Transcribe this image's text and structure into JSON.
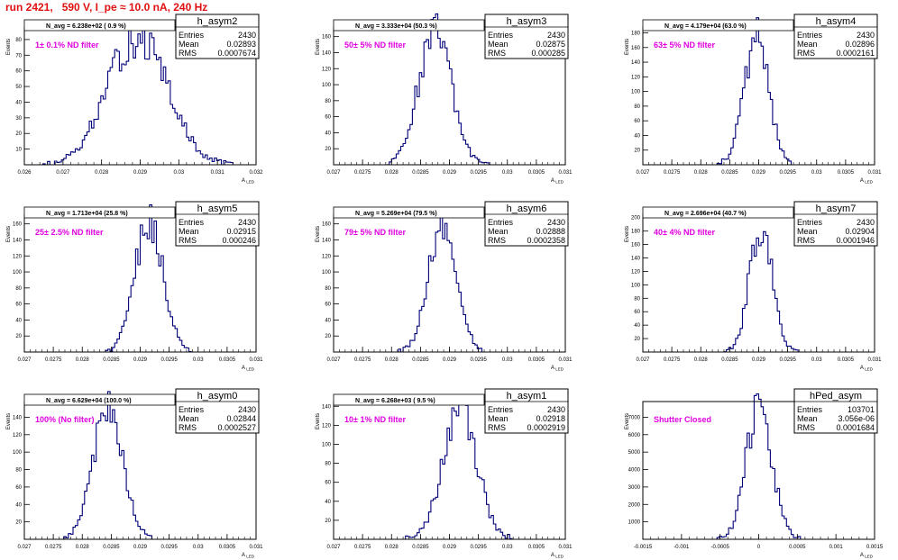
{
  "page": {
    "title": "run 2421,   590 V, I_pe ≈ 10.0 nA, 240 Hz"
  },
  "colors": {
    "histogram": "#00007a",
    "filter_label": "#e000e0",
    "title": "#e01010",
    "frame": "#000000"
  },
  "chart_data": [
    {
      "type": "histogram",
      "name": "h_asym2",
      "ylabel": "Events",
      "xlabel": "A_LED",
      "xlim": [
        0.026,
        0.032
      ],
      "ylim": [
        0,
        88
      ],
      "x_ticks": [
        "0.026",
        "0.027",
        "0.028",
        "0.029",
        "0.03",
        "0.031",
        "0.032"
      ],
      "y_ticks": [
        "10",
        "20",
        "30",
        "40",
        "50",
        "60",
        "70",
        "80"
      ],
      "stats": {
        "entries_label": "Entries",
        "entries": "2430",
        "mean_label": "Mean",
        "mean": "0.02893",
        "rms_label": "RMS",
        "rms": "0.0007674"
      },
      "annotation": "N_avg = 6.238e+02 ( 0.9 %)",
      "filter": "1± 0.1% ND filter",
      "mean": 0.02893,
      "sigma": 0.00077,
      "peak": 82
    },
    {
      "type": "histogram",
      "name": "h_asym3",
      "ylabel": "Events",
      "xlabel": "A_LED",
      "xlim": [
        0.027,
        0.031
      ],
      "ylim": [
        0,
        172
      ],
      "x_ticks": [
        "0.027",
        "0.0275",
        "0.028",
        "0.0285",
        "0.029",
        "0.0295",
        "0.03",
        "0.0305",
        "0.031"
      ],
      "y_ticks": [
        "20",
        "40",
        "60",
        "80",
        "100",
        "120",
        "140",
        "160"
      ],
      "stats": {
        "entries_label": "Entries",
        "entries": "2430",
        "mean_label": "Mean",
        "mean": "0.02875",
        "rms_label": "RMS",
        "rms": "0.000285"
      },
      "annotation": "N_avg = 3.333e+04 (50.3 %)",
      "filter": "50± 5% ND filter",
      "mean": 0.02875,
      "sigma": 0.000285,
      "peak": 165
    },
    {
      "type": "histogram",
      "name": "h_asym4",
      "ylabel": "Events",
      "xlabel": "A_LED",
      "xlim": [
        0.027,
        0.031
      ],
      "ylim": [
        0,
        188
      ],
      "x_ticks": [
        "0.027",
        "0.0275",
        "0.028",
        "0.0285",
        "0.029",
        "0.0295",
        "0.03",
        "0.0305",
        "0.031"
      ],
      "y_ticks": [
        "20",
        "40",
        "60",
        "80",
        "100",
        "120",
        "140",
        "160",
        "180"
      ],
      "stats": {
        "entries_label": "Entries",
        "entries": "2430",
        "mean_label": "Mean",
        "mean": "0.02896",
        "rms_label": "RMS",
        "rms": "0.0002161"
      },
      "annotation": "N_avg = 4.179e+04 (63.0 %)",
      "filter": "63± 5% ND filter",
      "mean": 0.02896,
      "sigma": 0.000216,
      "peak": 175
    },
    {
      "type": "histogram",
      "name": "h_asym5",
      "ylabel": "Events",
      "xlabel": "A_LED",
      "xlim": [
        0.027,
        0.031
      ],
      "ylim": [
        0,
        172
      ],
      "x_ticks": [
        "0.027",
        "0.0275",
        "0.028",
        "0.0285",
        "0.029",
        "0.0295",
        "0.03",
        "0.0305",
        "0.031"
      ],
      "y_ticks": [
        "20",
        "40",
        "60",
        "80",
        "100",
        "120",
        "140",
        "160"
      ],
      "stats": {
        "entries_label": "Entries",
        "entries": "2430",
        "mean_label": "Mean",
        "mean": "0.02915",
        "rms_label": "RMS",
        "rms": "0.000246"
      },
      "annotation": "N_avg = 1.713e+04 (25.8 %)",
      "filter": "25± 2.5% ND filter",
      "mean": 0.02915,
      "sigma": 0.000246,
      "peak": 162
    },
    {
      "type": "histogram",
      "name": "h_asym6",
      "ylabel": "Events",
      "xlabel": "A_LED",
      "xlim": [
        0.027,
        0.031
      ],
      "ylim": [
        0,
        172
      ],
      "x_ticks": [
        "0.027",
        "0.0275",
        "0.028",
        "0.0285",
        "0.029",
        "0.0295",
        "0.03",
        "0.0305",
        "0.031"
      ],
      "y_ticks": [
        "20",
        "40",
        "60",
        "80",
        "100",
        "120",
        "140",
        "160"
      ],
      "stats": {
        "entries_label": "Entries",
        "entries": "2430",
        "mean_label": "Mean",
        "mean": "0.02888",
        "rms_label": "RMS",
        "rms": "0.0002358"
      },
      "annotation": "N_avg = 5.269e+04 (79.5 %)",
      "filter": "79± 5% ND filter",
      "mean": 0.02888,
      "sigma": 0.000236,
      "peak": 165
    },
    {
      "type": "histogram",
      "name": "h_asym7",
      "ylabel": "Events",
      "xlabel": "A_LED",
      "xlim": [
        0.027,
        0.031
      ],
      "ylim": [
        0,
        205
      ],
      "x_ticks": [
        "0.027",
        "0.0275",
        "0.028",
        "0.0285",
        "0.029",
        "0.0295",
        "0.03",
        "0.0305",
        "0.031"
      ],
      "y_ticks": [
        "20",
        "40",
        "60",
        "80",
        "100",
        "120",
        "140",
        "160",
        "180",
        "200"
      ],
      "stats": {
        "entries_label": "Entries",
        "entries": "2430",
        "mean_label": "Mean",
        "mean": "0.02904",
        "rms_label": "RMS",
        "rms": "0.0001946"
      },
      "annotation": "N_avg = 2.696e+04 (40.7 %)",
      "filter": "40± 4% ND filter",
      "mean": 0.02904,
      "sigma": 0.000195,
      "peak": 188
    },
    {
      "type": "histogram",
      "name": "h_asym0",
      "ylabel": "Events",
      "xlabel": "A_LED",
      "xlim": [
        0.027,
        0.031
      ],
      "ylim": [
        0,
        158
      ],
      "x_ticks": [
        "0.027",
        "0.0275",
        "0.028",
        "0.0285",
        "0.029",
        "0.0295",
        "0.03",
        "0.0305",
        "0.031"
      ],
      "y_ticks": [
        "20",
        "40",
        "60",
        "80",
        "100",
        "120",
        "140"
      ],
      "stats": {
        "entries_label": "Entries",
        "entries": "2430",
        "mean_label": "Mean",
        "mean": "0.02844",
        "rms_label": "RMS",
        "rms": "0.0002527"
      },
      "annotation": "N_avg = 6.629e+04 (100.0 %)",
      "filter": "100% (No filter)",
      "mean": 0.02844,
      "sigma": 0.000253,
      "peak": 150
    },
    {
      "type": "histogram",
      "name": "h_asym1",
      "ylabel": "Events",
      "xlabel": "A_LED",
      "xlim": [
        0.027,
        0.031
      ],
      "ylim": [
        0,
        145
      ],
      "x_ticks": [
        "0.027",
        "0.0275",
        "0.028",
        "0.0285",
        "0.029",
        "0.0295",
        "0.03",
        "0.0305",
        "0.031"
      ],
      "y_ticks": [
        "20",
        "40",
        "60",
        "80",
        "100",
        "120",
        "140"
      ],
      "stats": {
        "entries_label": "Entries",
        "entries": "2430",
        "mean_label": "Mean",
        "mean": "0.02918",
        "rms_label": "RMS",
        "rms": "0.0002919"
      },
      "annotation": "N_avg = 6.268e+03 ( 9.5 %)",
      "filter": "10± 1% ND filter",
      "mean": 0.02918,
      "sigma": 0.000292,
      "peak": 137
    },
    {
      "type": "histogram",
      "name": "hPed_asym",
      "ylabel": "Events",
      "xlabel": "A_LED",
      "xlim": [
        -0.0015,
        0.0015
      ],
      "ylim": [
        0,
        7900
      ],
      "x_ticks": [
        "-0.0015",
        "-0.001",
        "-0.0005",
        "0",
        "0.0005",
        "0.001",
        "0.0015"
      ],
      "y_ticks": [
        "1000",
        "2000",
        "3000",
        "4000",
        "5000",
        "6000",
        "7000"
      ],
      "stats": {
        "entries_label": "Entries",
        "entries": "103701",
        "mean_label": "Mean",
        "mean": "3.056e-06",
        "rms_label": "RMS",
        "rms": "0.0001684"
      },
      "annotation": "",
      "filter": "Shutter Closed",
      "mean": 3e-06,
      "sigma": 0.000168,
      "peak": 7600
    }
  ]
}
